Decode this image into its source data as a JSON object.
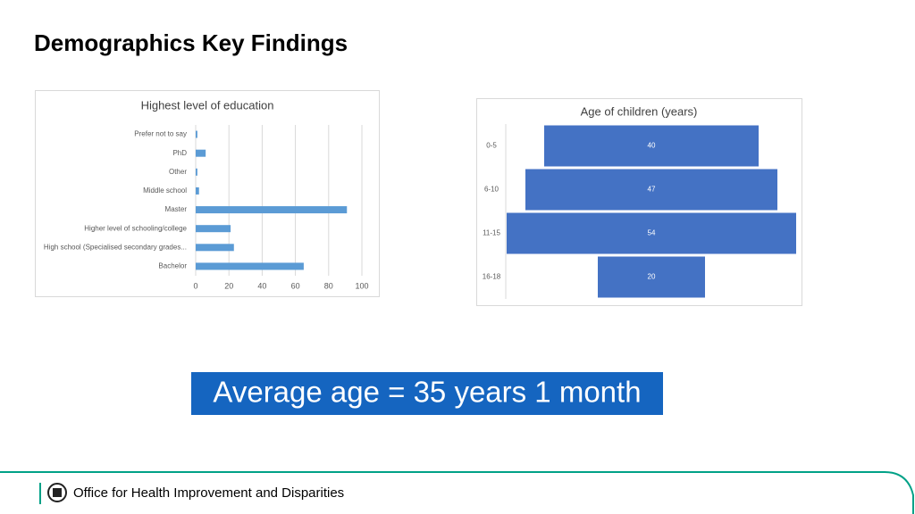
{
  "title": "Demographics Key Findings",
  "chart_data": [
    {
      "type": "bar",
      "orientation": "horizontal",
      "title": "Highest level of education",
      "categories": [
        "Prefer not to say",
        "PhD",
        "Other",
        "Middle school",
        "Master",
        "Higher level of schooling/college",
        "High school (Specialised secondary grades...",
        "Bachelor"
      ],
      "values": [
        1,
        6,
        1,
        2,
        91,
        21,
        23,
        65
      ],
      "color": "#5b9bd5",
      "xlim": [
        0,
        100
      ],
      "xticks": [
        0,
        20,
        40,
        60,
        80,
        100
      ],
      "grid": true
    },
    {
      "type": "funnel",
      "title": "Age of children (years)",
      "categories": [
        "0-5",
        "6-10",
        "11-15",
        "16-18"
      ],
      "values": [
        40,
        47,
        54,
        20
      ],
      "color": "#4472c4"
    }
  ],
  "callout": "Average age = 35 years 1 month",
  "footer": "Office for Health Improvement and Disparities"
}
